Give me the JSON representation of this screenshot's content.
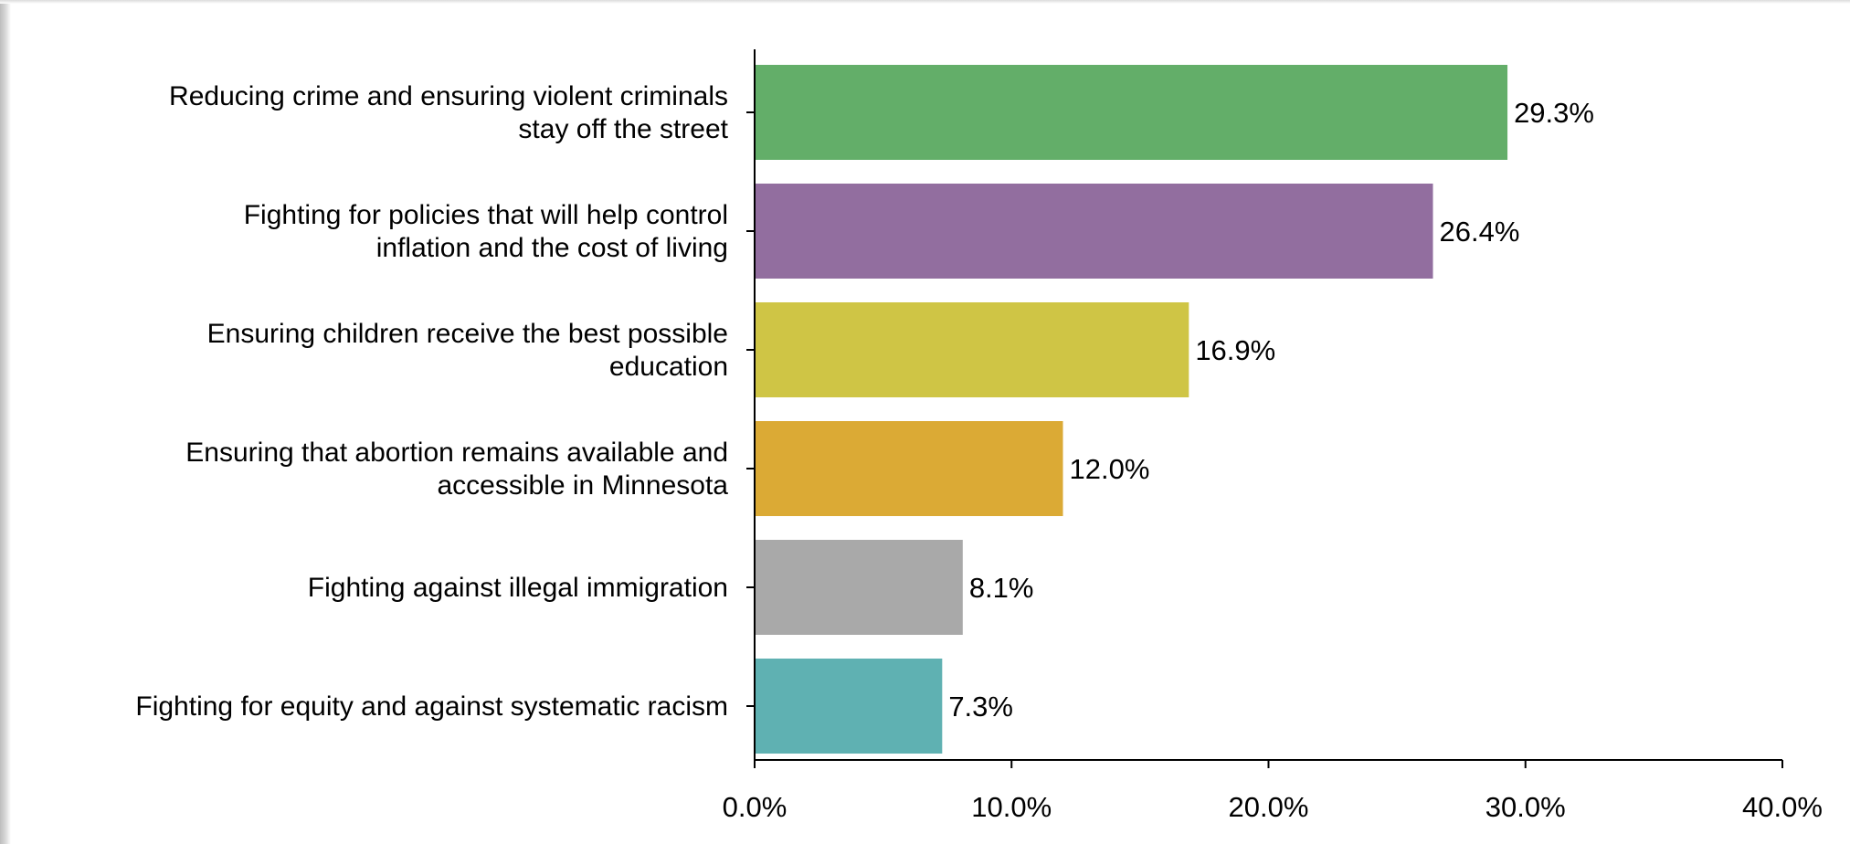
{
  "chart_data": {
    "type": "bar",
    "orientation": "horizontal",
    "categories": [
      [
        "Reducing crime and ensuring violent criminals",
        "stay off the street"
      ],
      [
        "Fighting for policies that will help control",
        "inflation and the cost of living"
      ],
      [
        "Ensuring children receive the best possible",
        "education"
      ],
      [
        "Ensuring that abortion remains available and",
        "accessible in Minnesota"
      ],
      [
        "Fighting against illegal immigration"
      ],
      [
        "Fighting for equity and against systematic racism"
      ]
    ],
    "values": [
      29.3,
      26.4,
      16.9,
      12.0,
      8.1,
      7.3
    ],
    "value_labels": [
      "29.3%",
      "26.4%",
      "16.9%",
      "12.0%",
      "8.1%",
      "7.3%"
    ],
    "colors": [
      "#63ae69",
      "#926e9f",
      "#cfc545",
      "#dbaa35",
      "#a9a9a9",
      "#5fb1b2"
    ],
    "xlim": [
      0,
      40
    ],
    "xticks": [
      0,
      10,
      20,
      30,
      40
    ],
    "xtick_labels": [
      "0.0%",
      "10.0%",
      "20.0%",
      "30.0%",
      "40.0%"
    ],
    "grid": false,
    "legend": "none",
    "title": "",
    "xlabel": "",
    "ylabel": ""
  }
}
